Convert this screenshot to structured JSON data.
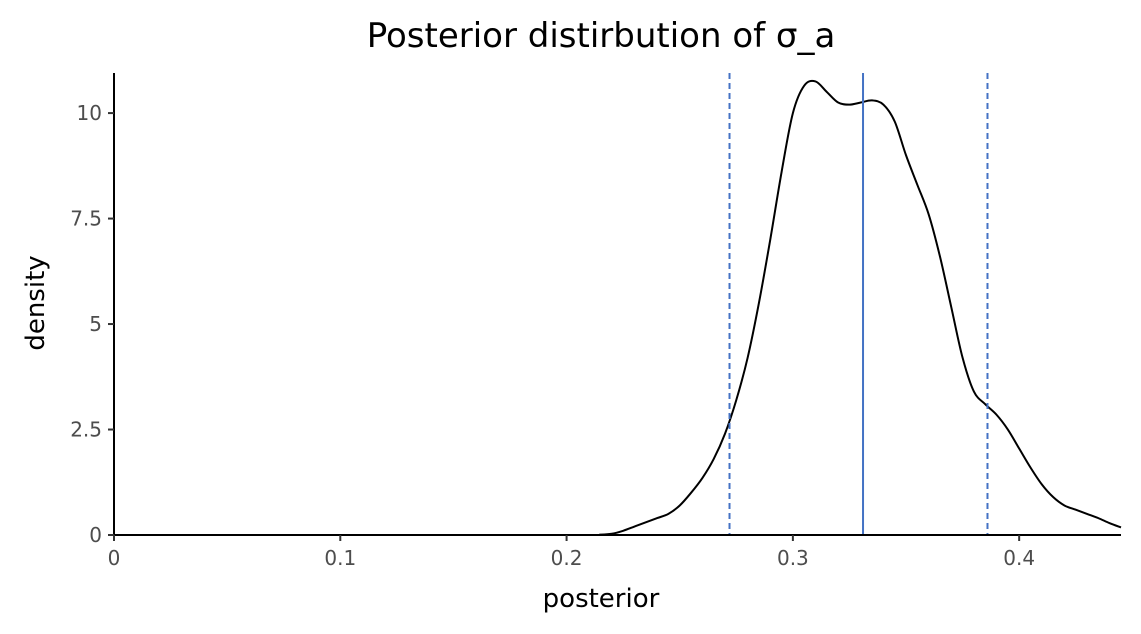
{
  "chart_data": {
    "type": "area",
    "title": "Posterior distirbution of σ_a",
    "xlabel": "posterior",
    "ylabel": "density",
    "xlim": [
      0,
      0.445
    ],
    "ylim": [
      0,
      10.95
    ],
    "x_ticks": [
      {
        "value": 0,
        "label": "0"
      },
      {
        "value": 0.1,
        "label": "0.1"
      },
      {
        "value": 0.2,
        "label": "0.2"
      },
      {
        "value": 0.3,
        "label": "0.3"
      },
      {
        "value": 0.4,
        "label": "0.4"
      }
    ],
    "y_ticks": [
      {
        "value": 0,
        "label": "0"
      },
      {
        "value": 2.5,
        "label": "2.5"
      },
      {
        "value": 5,
        "label": "5"
      },
      {
        "value": 7.5,
        "label": "7.5"
      },
      {
        "value": 10,
        "label": "10"
      }
    ],
    "grid": false,
    "series": [
      {
        "color": "#000000",
        "x": [
          0,
          0.2,
          0.215,
          0.22,
          0.225,
          0.23,
          0.235,
          0.24,
          0.245,
          0.25,
          0.255,
          0.26,
          0.265,
          0.27,
          0.275,
          0.28,
          0.285,
          0.29,
          0.295,
          0.3,
          0.305,
          0.31,
          0.315,
          0.32,
          0.325,
          0.33,
          0.335,
          0.34,
          0.345,
          0.35,
          0.355,
          0.36,
          0.365,
          0.37,
          0.375,
          0.38,
          0.385,
          0.39,
          0.395,
          0.4,
          0.405,
          0.41,
          0.415,
          0.42,
          0.425,
          0.43,
          0.435,
          0.44,
          0.445
        ],
        "y": [
          0,
          0,
          0.01,
          0.03,
          0.1,
          0.2,
          0.3,
          0.4,
          0.5,
          0.7,
          1.0,
          1.35,
          1.8,
          2.4,
          3.2,
          4.2,
          5.5,
          7.0,
          8.6,
          10.0,
          10.65,
          10.75,
          10.5,
          10.25,
          10.2,
          10.25,
          10.3,
          10.2,
          9.8,
          9.0,
          8.3,
          7.6,
          6.6,
          5.4,
          4.2,
          3.4,
          3.1,
          2.85,
          2.5,
          2.05,
          1.6,
          1.2,
          0.9,
          0.7,
          0.6,
          0.5,
          0.4,
          0.28,
          0.18
        ]
      }
    ],
    "vlines": [
      {
        "x": 0.272,
        "style": "dashed",
        "color": "#4472c4"
      },
      {
        "x": 0.331,
        "style": "solid",
        "color": "#4472c4"
      },
      {
        "x": 0.386,
        "style": "dashed",
        "color": "#4472c4"
      }
    ]
  }
}
